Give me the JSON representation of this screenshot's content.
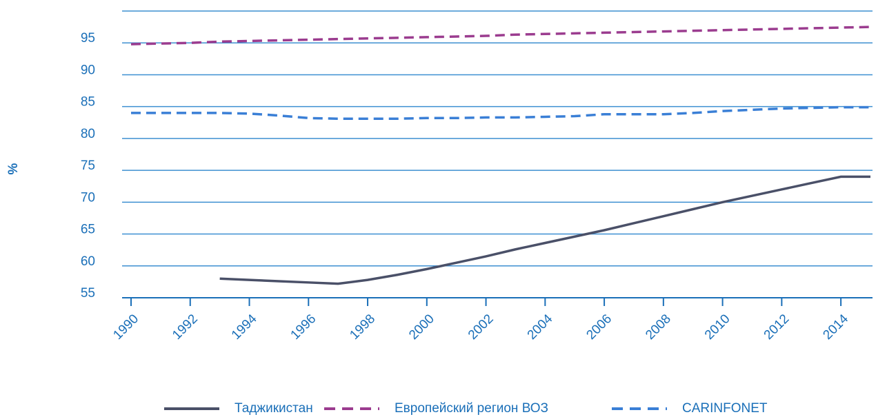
{
  "chart_data": {
    "type": "line",
    "y_label": "%",
    "x": [
      1990,
      1991,
      1992,
      1993,
      1994,
      1995,
      1996,
      1997,
      1998,
      1999,
      2000,
      2001,
      2002,
      2003,
      2004,
      2005,
      2006,
      2007,
      2008,
      2009,
      2010,
      2011,
      2012,
      2013,
      2014,
      2015
    ],
    "series": [
      {
        "name": "Таджикистан",
        "color": "#4a5068",
        "dash": "solid",
        "values": [
          null,
          null,
          null,
          58,
          57.8,
          57.6,
          57.4,
          57.2,
          57.8,
          58.6,
          59.5,
          60.5,
          61.5,
          62.6,
          63.6,
          64.6,
          65.6,
          66.7,
          67.8,
          68.9,
          70,
          71,
          72,
          73,
          74,
          74
        ]
      },
      {
        "name": "Европейский регион ВОЗ",
        "color": "#9b3c8f",
        "dash": "dashed",
        "values": [
          94.8,
          94.9,
          95.0,
          95.2,
          95.3,
          95.4,
          95.5,
          95.6,
          95.7,
          95.8,
          95.9,
          96.0,
          96.1,
          96.3,
          96.4,
          96.5,
          96.6,
          96.7,
          96.8,
          96.9,
          97.0,
          97.1,
          97.2,
          97.3,
          97.4,
          97.5
        ]
      },
      {
        "name": "CARINFONET",
        "color": "#3a7fd6",
        "dash": "dashed",
        "values": [
          84.0,
          84.0,
          84.0,
          84.0,
          83.9,
          83.6,
          83.2,
          83.1,
          83.1,
          83.1,
          83.2,
          83.2,
          83.3,
          83.3,
          83.4,
          83.5,
          83.8,
          83.8,
          83.8,
          84.0,
          84.3,
          84.5,
          84.7,
          84.8,
          84.9,
          84.9
        ]
      }
    ],
    "xlim": [
      1990,
      2015
    ],
    "xticks": [
      1990,
      1992,
      1994,
      1996,
      1998,
      2000,
      2002,
      2004,
      2006,
      2008,
      2010,
      2012,
      2014
    ],
    "ylim": [
      55,
      100
    ],
    "yticks": [
      55,
      60,
      65,
      70,
      75,
      80,
      85,
      90,
      95
    ],
    "grid": true,
    "legend": "bottom"
  }
}
